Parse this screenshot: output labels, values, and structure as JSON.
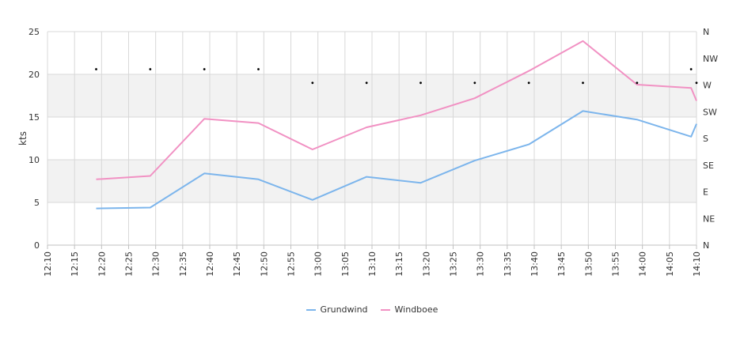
{
  "chart_data": {
    "type": "line",
    "ylabel": "kts",
    "ylim": [
      0,
      25
    ],
    "y_ticks": [
      0,
      5,
      10,
      15,
      20,
      25
    ],
    "x_range": [
      "12:10",
      "14:10"
    ],
    "x_ticks": [
      "12:10",
      "12:15",
      "12:20",
      "12:25",
      "12:30",
      "12:35",
      "12:40",
      "12:45",
      "12:50",
      "12:55",
      "13:00",
      "13:05",
      "13:10",
      "13:15",
      "13:20",
      "13:25",
      "13:30",
      "13:35",
      "13:40",
      "13:45",
      "13:50",
      "13:55",
      "14:00",
      "14:05",
      "14:10"
    ],
    "right_axis_labels": [
      "N",
      "NE",
      "E",
      "SE",
      "S",
      "SW",
      "W",
      "NW",
      "N"
    ],
    "bands": [
      [
        5,
        10
      ],
      [
        15,
        20
      ]
    ],
    "grid": true,
    "legend_position": "bottom",
    "series": [
      {
        "name": "Grundwind",
        "color": "#7cb5ec",
        "points": [
          [
            "12:19",
            4.3
          ],
          [
            "12:29",
            4.4
          ],
          [
            "12:39",
            8.4
          ],
          [
            "12:49",
            7.7
          ],
          [
            "12:59",
            5.3
          ],
          [
            "13:09",
            8.0
          ],
          [
            "13:19",
            7.3
          ],
          [
            "13:29",
            9.9
          ],
          [
            "13:39",
            11.8
          ],
          [
            "13:49",
            15.7
          ],
          [
            "13:59",
            14.7
          ],
          [
            "14:09",
            12.7
          ],
          [
            "14:10",
            14.2
          ]
        ]
      },
      {
        "name": "Windboee",
        "color": "#f191c3",
        "points": [
          [
            "12:19",
            7.7
          ],
          [
            "12:29",
            8.1
          ],
          [
            "12:39",
            14.8
          ],
          [
            "12:49",
            14.3
          ],
          [
            "12:59",
            11.2
          ],
          [
            "13:09",
            13.8
          ],
          [
            "13:19",
            15.2
          ],
          [
            "13:29",
            17.2
          ],
          [
            "13:39",
            20.4
          ],
          [
            "13:49",
            23.9
          ],
          [
            "13:59",
            18.8
          ],
          [
            "14:09",
            18.4
          ],
          [
            "14:10",
            16.9
          ]
        ]
      }
    ],
    "direction_markers": [
      [
        "12:19",
        20.6
      ],
      [
        "12:29",
        20.6
      ],
      [
        "12:39",
        20.6
      ],
      [
        "12:49",
        20.6
      ],
      [
        "12:59",
        19.0
      ],
      [
        "13:09",
        19.0
      ],
      [
        "13:19",
        19.0
      ],
      [
        "13:29",
        19.0
      ],
      [
        "13:39",
        19.0
      ],
      [
        "13:49",
        19.0
      ],
      [
        "13:59",
        19.0
      ],
      [
        "14:09",
        20.6
      ],
      [
        "14:10",
        19.0
      ]
    ]
  }
}
